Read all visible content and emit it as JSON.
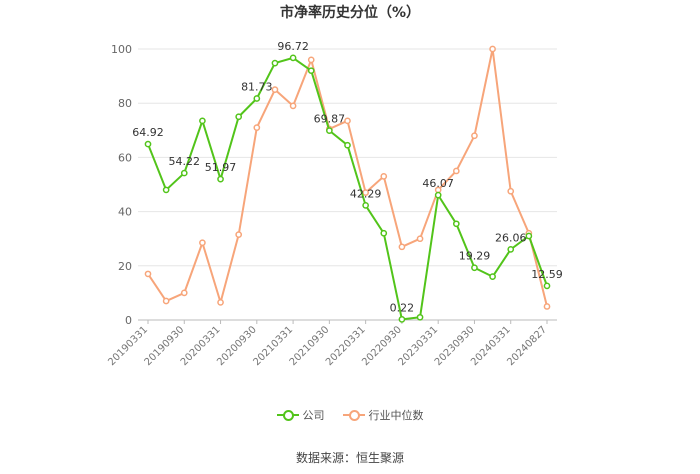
{
  "chart_data": {
    "type": "line",
    "title": "市净率历史分位（%）",
    "ylim": [
      0,
      100
    ],
    "yticks": [
      0,
      20,
      40,
      60,
      80,
      100
    ],
    "grid": "horizontal",
    "legend_position": "bottom",
    "x": [
      "20190331",
      "20190630",
      "20190930",
      "20191231",
      "20200331",
      "20200630",
      "20200930",
      "20201231",
      "20210331",
      "20210630",
      "20210930",
      "20211231",
      "20220331",
      "20220630",
      "20220930",
      "20221231",
      "20230331",
      "20230630",
      "20230930",
      "20231231",
      "20240331",
      "20240630",
      "20240827"
    ],
    "xtick_labels": [
      "20190331",
      "20190930",
      "20200331",
      "20200930",
      "20210331",
      "20210930",
      "20220331",
      "20220930",
      "20230331",
      "20230930",
      "20240331",
      "20240827"
    ],
    "series": [
      {
        "name": "公司",
        "color": "#52c41a",
        "values": [
          64.92,
          48,
          54.22,
          73.5,
          51.97,
          75,
          81.73,
          94.8,
          96.72,
          92,
          69.87,
          64.5,
          42.29,
          32,
          0.22,
          1,
          46.07,
          35.5,
          19.29,
          16,
          26.06,
          31,
          12.59
        ],
        "labels": {
          "0": "64.92",
          "2": "54.22",
          "4": "51.97",
          "6": "81.73",
          "8": "96.72",
          "10": "69.87",
          "12": "42.29",
          "14": "0.22",
          "16": "46.07",
          "18": "19.29",
          "20": "26.06",
          "22": "12.59"
        }
      },
      {
        "name": "行业中位数",
        "color": "#f7a57a",
        "values": [
          17,
          7,
          10,
          28.5,
          6.5,
          31.5,
          71,
          85,
          79,
          96,
          70.5,
          73.5,
          47,
          53,
          27,
          30,
          48,
          55,
          68,
          100,
          47.5,
          32,
          5
        ]
      }
    ]
  },
  "source": "数据来源：恒生聚源"
}
